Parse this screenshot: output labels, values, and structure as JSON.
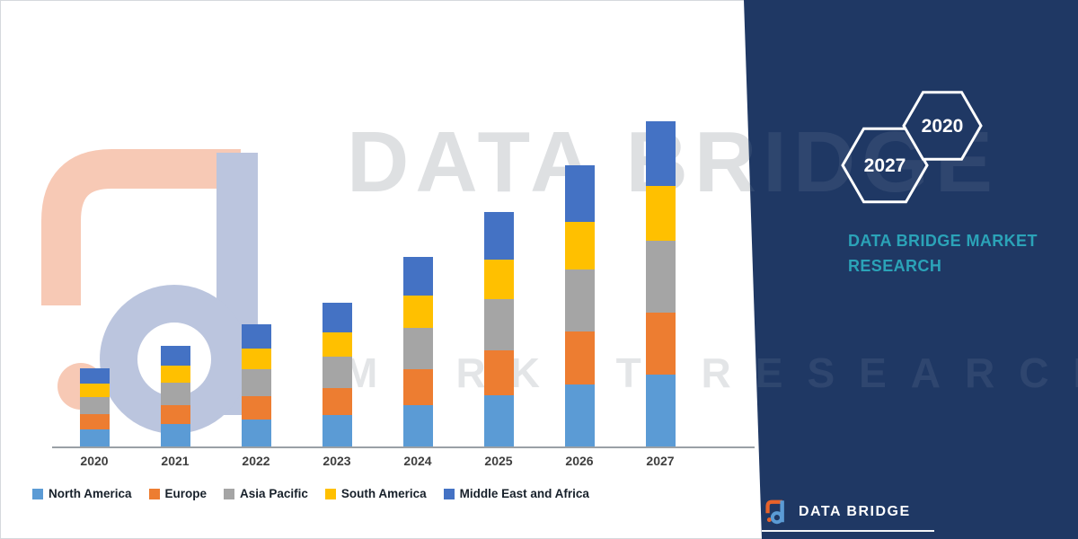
{
  "brand": {
    "panel_color": "#1F3864",
    "accent_teal": "#2BA3B8",
    "name_line1": "DATA BRIDGE MARKET",
    "name_line2": "RESEARCH",
    "hex_back_year": "2027",
    "hex_front_year": "2020",
    "footer_logo_text": "DATA BRIDGE"
  },
  "watermark": {
    "big_text": "DATA BRIDGE",
    "row_text": "MARKET RESEARCH"
  },
  "chart_data": {
    "type": "bar",
    "stacked": true,
    "title": "",
    "xlabel": "",
    "ylabel": "",
    "value_axis_visible": false,
    "grid": false,
    "legend_position": "bottom",
    "ylim": [
      0,
      400
    ],
    "categories": [
      "2020",
      "2021",
      "2022",
      "2023",
      "2024",
      "2025",
      "2026",
      "2027"
    ],
    "series": [
      {
        "name": "North America",
        "color": "#5B9BD5",
        "values": [
          19,
          25,
          30,
          35,
          46,
          57,
          69,
          80
        ]
      },
      {
        "name": "Europe",
        "color": "#ED7D31",
        "values": [
          17,
          21,
          26,
          30,
          40,
          50,
          59,
          69
        ]
      },
      {
        "name": "Asia Pacific",
        "color": "#A5A5A5",
        "values": [
          19,
          25,
          30,
          35,
          46,
          57,
          69,
          80
        ]
      },
      {
        "name": "South America",
        "color": "#FFC000",
        "values": [
          15,
          19,
          23,
          27,
          36,
          44,
          53,
          61
        ]
      },
      {
        "name": "Middle East and Africa",
        "color": "#4472C4",
        "values": [
          17,
          22,
          27,
          33,
          43,
          53,
          63,
          72
        ]
      }
    ]
  }
}
